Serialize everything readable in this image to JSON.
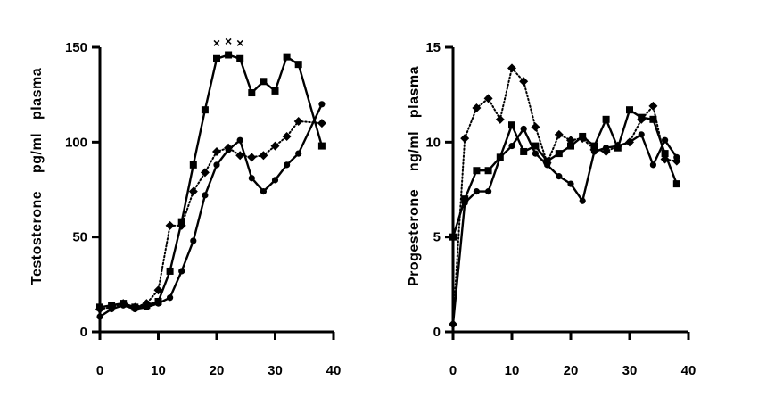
{
  "chart_data": [
    {
      "type": "line",
      "ylabel": "Testosterone    pg/ml   plasma",
      "xlim": [
        0,
        40
      ],
      "ylim": [
        0,
        150
      ],
      "xticks": [
        0,
        10,
        20,
        30,
        40
      ],
      "yticks": [
        0,
        50,
        100,
        150
      ],
      "grid": false,
      "annotations": [
        {
          "text": "×",
          "x": 20,
          "y": 150
        },
        {
          "text": "×",
          "x": 22,
          "y": 151
        },
        {
          "text": "×",
          "x": 24,
          "y": 150
        }
      ],
      "series": [
        {
          "marker": "square",
          "dash": "solid",
          "x": [
            0,
            2,
            4,
            6,
            8,
            10,
            12,
            14,
            16,
            18,
            20,
            22,
            24,
            26,
            28,
            30,
            32,
            34,
            38
          ],
          "y": [
            13,
            14,
            15,
            13,
            14,
            16,
            32,
            58,
            88,
            117,
            144,
            146,
            144,
            126,
            132,
            127,
            145,
            141,
            98
          ]
        },
        {
          "marker": "circle",
          "dash": "solid",
          "x": [
            0,
            2,
            4,
            6,
            8,
            10,
            12,
            14,
            16,
            18,
            20,
            22,
            24,
            26,
            28,
            30,
            32,
            34,
            38
          ],
          "y": [
            8,
            12,
            14,
            12,
            13,
            15,
            18,
            32,
            48,
            72,
            88,
            96,
            101,
            81,
            74,
            80,
            88,
            94,
            120
          ]
        },
        {
          "marker": "diamond",
          "dash": "dotted",
          "x": [
            0,
            2,
            4,
            6,
            8,
            10,
            12,
            14,
            16,
            18,
            20,
            22,
            24,
            26,
            28,
            30,
            32,
            34,
            38
          ],
          "y": [
            12,
            13,
            15,
            13,
            15,
            22,
            56,
            56,
            74,
            84,
            95,
            97,
            93,
            92,
            93,
            98,
            103,
            111,
            110
          ]
        }
      ]
    },
    {
      "type": "line",
      "ylabel": "Progesterone    ng/ml   plasma",
      "xlim": [
        0,
        40
      ],
      "ylim": [
        0,
        15
      ],
      "xticks": [
        0,
        10,
        20,
        30,
        40
      ],
      "yticks": [
        0,
        5,
        10,
        15
      ],
      "grid": false,
      "series": [
        {
          "marker": "square",
          "dash": "solid",
          "x": [
            0,
            2,
            4,
            6,
            8,
            10,
            12,
            14,
            16,
            18,
            20,
            22,
            24,
            26,
            28,
            30,
            32,
            34,
            36,
            38
          ],
          "y": [
            5.0,
            7.0,
            8.5,
            8.5,
            9.2,
            10.9,
            9.5,
            9.8,
            9.0,
            9.4,
            9.8,
            10.3,
            9.8,
            11.2,
            9.7,
            11.7,
            11.3,
            11.2,
            9.4,
            7.8
          ]
        },
        {
          "marker": "circle",
          "dash": "solid",
          "x": [
            0,
            2,
            4,
            6,
            8,
            10,
            12,
            14,
            16,
            18,
            20,
            22,
            24,
            26,
            28,
            30,
            32,
            34,
            36,
            38
          ],
          "y": [
            0.4,
            6.8,
            7.4,
            7.4,
            9.2,
            9.8,
            10.7,
            9.4,
            8.8,
            8.2,
            7.8,
            6.9,
            9.5,
            9.7,
            9.8,
            10.0,
            10.4,
            8.8,
            10.1,
            9.2
          ]
        },
        {
          "marker": "diamond",
          "dash": "dotted",
          "x": [
            0,
            2,
            4,
            6,
            8,
            10,
            12,
            14,
            16,
            18,
            20,
            22,
            24,
            26,
            28,
            30,
            32,
            34,
            36,
            38
          ],
          "y": [
            0.4,
            10.2,
            11.8,
            12.3,
            11.2,
            13.9,
            13.2,
            10.8,
            8.9,
            10.4,
            10.1,
            10.2,
            9.6,
            9.5,
            9.8,
            10.0,
            11.2,
            11.9,
            9.1,
            9.0
          ]
        }
      ]
    }
  ]
}
